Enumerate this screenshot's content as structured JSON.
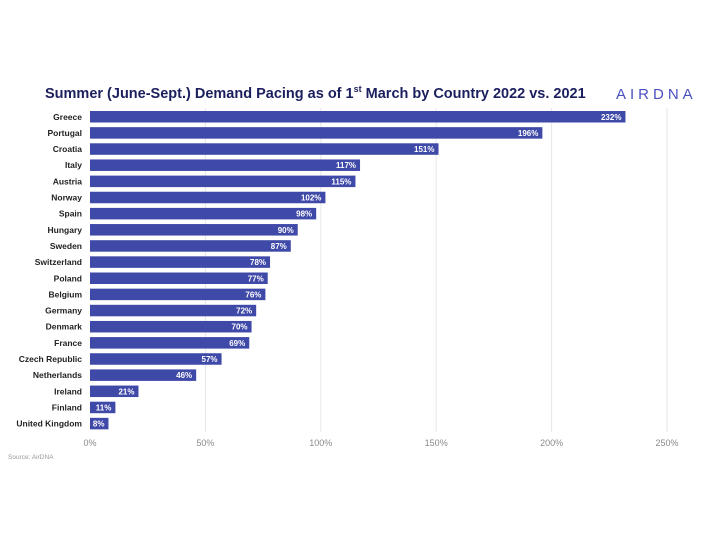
{
  "title_main": "Summer (June-Sept.) Demand Pacing as of 1",
  "title_sup": "st",
  "title_rest": " March by Country 2022 vs. 2021",
  "logo": "AIRDNA",
  "source": "Source: AirDNA",
  "colors": {
    "bar": "#3f49a8",
    "grid": "#e6e6e6",
    "title": "#1b1f5e",
    "logo": "#4a4fc0"
  },
  "chart_data": {
    "type": "bar",
    "orientation": "horizontal",
    "title": "Summer (June-Sept.) Demand Pacing as of 1st March by Country 2022 vs. 2021",
    "categories": [
      "Greece",
      "Portugal",
      "Croatia",
      "Italy",
      "Austria",
      "Norway",
      "Spain",
      "Hungary",
      "Sweden",
      "Switzerland",
      "Poland",
      "Belgium",
      "Germany",
      "Denmark",
      "France",
      "Czech Republic",
      "Netherlands",
      "Ireland",
      "Finland",
      "United Kingdom"
    ],
    "values": [
      232,
      196,
      151,
      117,
      115,
      102,
      98,
      90,
      87,
      78,
      77,
      76,
      72,
      70,
      69,
      57,
      46,
      21,
      11,
      8
    ],
    "value_labels": [
      "232%",
      "196%",
      "151%",
      "117%",
      "115%",
      "102%",
      "98%",
      "90%",
      "87%",
      "78%",
      "77%",
      "76%",
      "72%",
      "70%",
      "69%",
      "57%",
      "46%",
      "21%",
      "11%",
      "8%"
    ],
    "xlim": [
      0,
      250
    ],
    "xticks": [
      0,
      50,
      100,
      150,
      200,
      250
    ],
    "xtick_labels": [
      "0%",
      "50%",
      "100%",
      "150%",
      "200%",
      "250%"
    ],
    "xlabel": "",
    "ylabel": "",
    "grid": true
  }
}
